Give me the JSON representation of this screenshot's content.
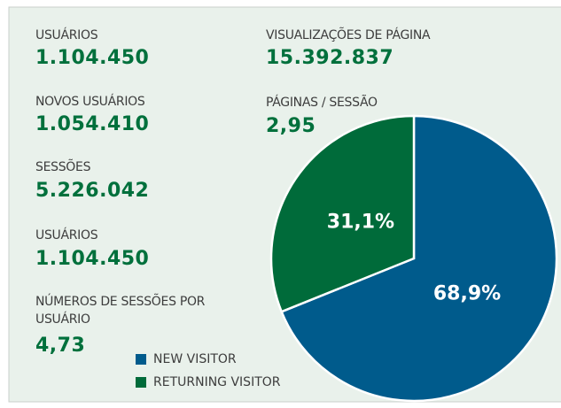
{
  "stats": [
    {
      "label": "USUÁRIOS",
      "value": "1.104.450"
    },
    {
      "label": "NOVOS USUÁRIOS",
      "value": "1.054.410"
    },
    {
      "label": "SESSÕES",
      "value": "5.226.042"
    },
    {
      "label": "USUÁRIOS",
      "value": "1.104.450"
    },
    {
      "label": "NÚMEROS DE SESSÕES POR USUÁRIO",
      "value": "4,73"
    },
    {
      "label": "VISUALIZAÇÕES DE PÁGINA",
      "value": "15.392.837"
    },
    {
      "label": "PÁGINAS / SESSÃO",
      "value": "2,95"
    }
  ],
  "chart_data": {
    "type": "pie",
    "categories": [
      "NEW VISITOR",
      "RETURNING VISITOR"
    ],
    "values": [
      68.9,
      31.1
    ],
    "value_labels": [
      "68,9%",
      "31,1%"
    ],
    "colors": [
      "#005b8c",
      "#006b3a"
    ]
  }
}
